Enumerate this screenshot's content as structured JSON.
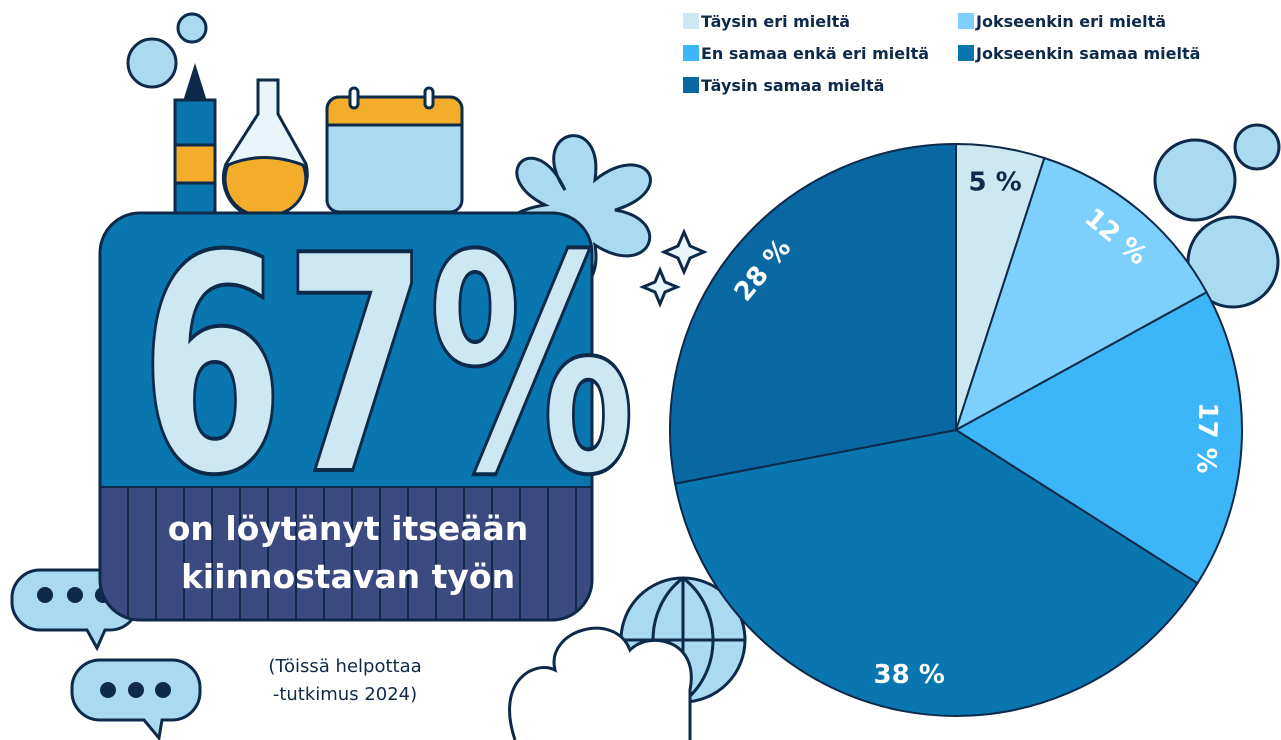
{
  "callout": {
    "figure": "67%",
    "lines": [
      "on löytänyt itseään",
      "kiinnostavan työn"
    ],
    "source": [
      "(Töissä helpottaa",
      "-tutkimus 2024)"
    ]
  },
  "chart_data": {
    "type": "pie",
    "categories": [
      "Täysin eri mieltä",
      "Jokseenkin eri mieltä",
      "En samaa enkä eri mieltä",
      "Jokseenkin samaa mieltä",
      "Täysin samaa mieltä"
    ],
    "values": [
      5,
      12,
      17,
      38,
      28
    ],
    "value_labels": [
      "5 %",
      "12 %",
      "17 %",
      "38 %",
      "28 %"
    ],
    "colors": [
      "#cde8f3",
      "#7dd0fb",
      "#3cb6f6",
      "#0a76b0",
      "#0967a1"
    ],
    "label_colors": [
      "#0d2a4a",
      "#ffffff",
      "#ffffff",
      "#ffffff",
      "#ffffff"
    ],
    "legend_position": "top"
  }
}
